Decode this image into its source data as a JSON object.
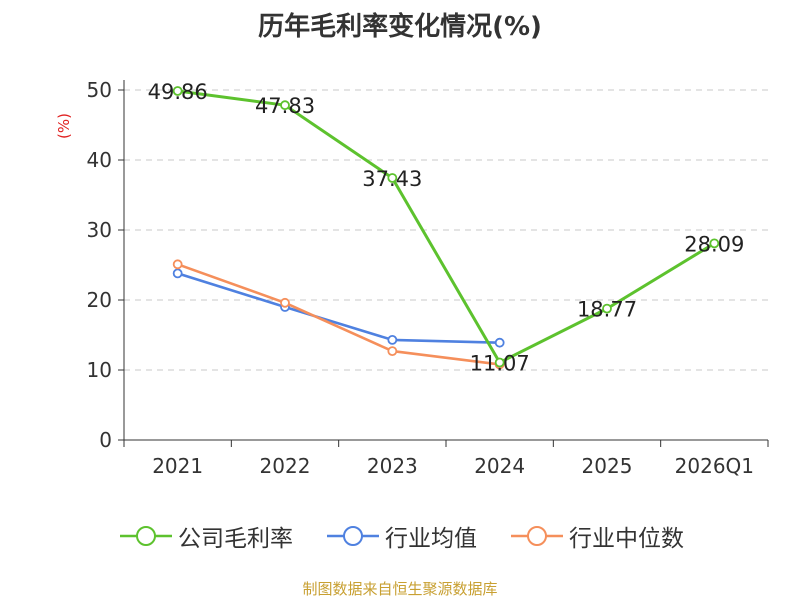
{
  "title": "历年毛利率变化情况(%)",
  "footer": "制图数据来自恒生聚源数据库",
  "chart_data": {
    "type": "line",
    "title": "历年毛利率变化情况(%)",
    "ylabel": "(%)",
    "categories": [
      "2021",
      "2022",
      "2023",
      "2024",
      "2025",
      "2026Q1"
    ],
    "ylim": [
      0,
      50
    ],
    "yticks": [
      0,
      10,
      20,
      30,
      40,
      50
    ],
    "grid": true,
    "legend_position": "bottom",
    "series": [
      {
        "name": "公司毛利率",
        "color": "#5dc22e",
        "values": [
          49.86,
          47.83,
          37.43,
          11.07,
          18.77,
          28.09
        ],
        "labels": [
          "49.86",
          "47.83",
          "37.43",
          "11.07",
          "18.77",
          "28.09"
        ]
      },
      {
        "name": "行业均值",
        "color": "#4f81e0",
        "values": [
          23.8,
          19.0,
          14.3,
          13.9,
          null,
          null
        ]
      },
      {
        "name": "行业中位数",
        "color": "#f58f5b",
        "values": [
          25.1,
          19.6,
          12.7,
          10.8,
          null,
          null
        ]
      }
    ]
  }
}
